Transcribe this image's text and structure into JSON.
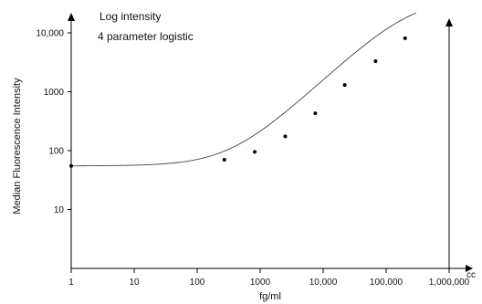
{
  "chart_data": {
    "type": "scatter",
    "title": "",
    "xlabel": "fg/ml",
    "ylabel": "Median Fluorescence Intensity",
    "x_scale": "log",
    "y_scale": "log",
    "xlim": [
      1,
      1000000
    ],
    "ylim": [
      1,
      10000
    ],
    "x_ticks": [
      1,
      10,
      100,
      1000,
      10000,
      100000,
      1000000
    ],
    "x_tick_labels": [
      "1",
      "10",
      "100",
      "1000",
      "10,000",
      "100,000",
      "1,000,000"
    ],
    "y_ticks": [
      10,
      100,
      1000,
      10000
    ],
    "y_tick_labels": [
      "10",
      "100",
      "1000",
      "10,000"
    ],
    "x_axis_arrow_label": "cc",
    "annotations": [
      "Log intensity",
      "4 parameter logistic"
    ],
    "grid": false,
    "legend": "none",
    "series": [
      {
        "values_x": [
          1,
          270,
          820,
          2500,
          7500,
          22000,
          68000,
          200000
        ],
        "values_y": [
          55,
          70,
          95,
          175,
          430,
          1300,
          3300,
          8100
        ]
      }
    ],
    "fit_curve": {
      "model": "4 parameter logistic",
      "lower_asymptote": 55,
      "upper_asymptote": 40000,
      "inflection_x": 250000,
      "slope": 1.0
    },
    "colors": {
      "axis": "#000000",
      "curve": "#444444",
      "points": "#000000"
    }
  }
}
